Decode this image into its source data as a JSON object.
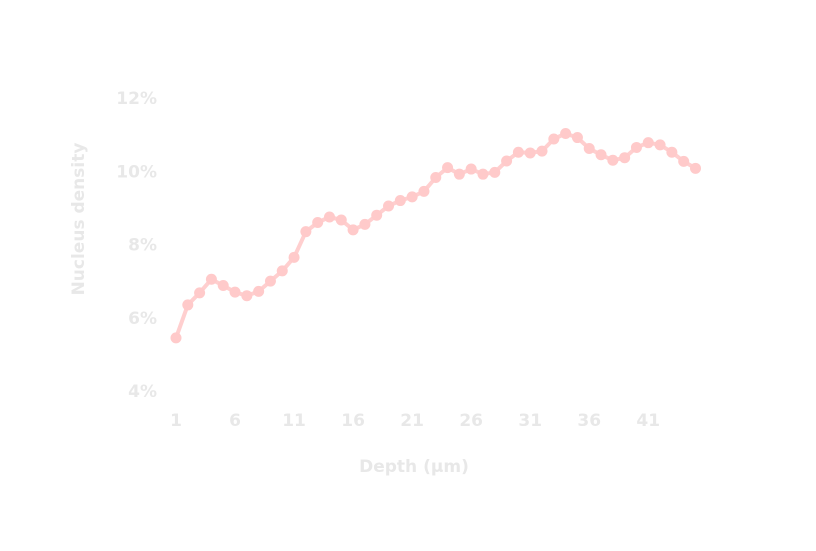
{
  "chart_data": {
    "type": "line",
    "xlabel": "Depth (µm)",
    "ylabel": "Nucleus density",
    "x_ticks": [
      1,
      6,
      11,
      16,
      21,
      26,
      31,
      36,
      41
    ],
    "y_ticks": [
      4,
      6,
      8,
      10,
      12
    ],
    "y_tick_labels": [
      "4%",
      "6%",
      "8%",
      "10%",
      "12%"
    ],
    "xlim": [
      1,
      45
    ],
    "ylim": [
      4,
      12
    ],
    "grid": false,
    "colors": {
      "line": "#ffcfcf",
      "marker": "#ffcaca",
      "text": "#e8e8e8"
    },
    "series": [
      {
        "x": [
          1,
          2,
          3,
          4,
          5,
          6,
          7,
          8,
          9,
          10,
          11,
          12,
          13,
          14,
          15,
          16,
          17,
          18,
          19,
          20,
          21,
          22,
          23,
          24,
          25,
          26,
          27,
          28,
          29,
          30,
          31,
          32,
          33,
          34,
          35,
          36,
          37,
          38,
          39,
          40,
          41,
          42,
          43,
          44,
          45
        ],
        "values": [
          5.45,
          6.35,
          6.68,
          7.05,
          6.88,
          6.7,
          6.6,
          6.72,
          7.0,
          7.28,
          7.65,
          8.35,
          8.6,
          8.75,
          8.67,
          8.4,
          8.55,
          8.8,
          9.05,
          9.2,
          9.3,
          9.45,
          9.83,
          10.1,
          9.92,
          10.06,
          9.92,
          9.97,
          10.28,
          10.52,
          10.5,
          10.55,
          10.88,
          11.03,
          10.92,
          10.62,
          10.45,
          10.3,
          10.37,
          10.65,
          10.78,
          10.72,
          10.52,
          10.27,
          10.08
        ]
      }
    ]
  }
}
